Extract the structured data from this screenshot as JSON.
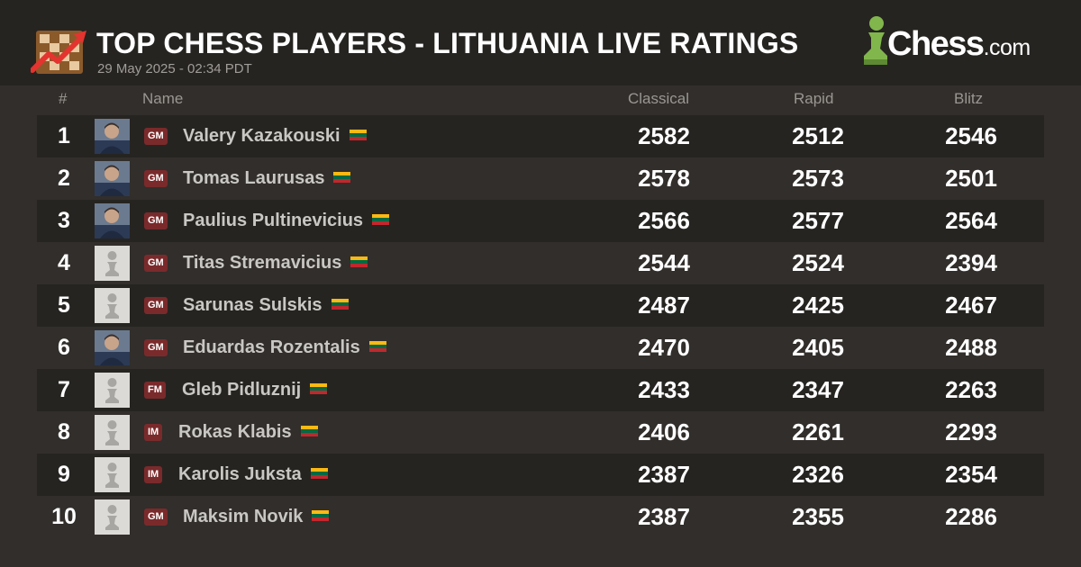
{
  "header": {
    "title": "TOP CHESS PLAYERS - LITHUANIA LIVE RATINGS",
    "timestamp": "29 May 2025 - 02:34 PDT",
    "brand_main": "Chess",
    "brand_suffix": ".com"
  },
  "columns": {
    "rank": "#",
    "name": "Name",
    "classical": "Classical",
    "rapid": "Rapid",
    "blitz": "Blitz"
  },
  "colors": {
    "background": "#312e2b",
    "header_background": "#262421",
    "title_badge": "#7a2a2b",
    "brand_green": "#81b64c",
    "flag_yellow": "#fdb913",
    "flag_green": "#006a44",
    "flag_red": "#c1272d"
  },
  "players": [
    {
      "rank": "1",
      "title": "GM",
      "name": "Valery Kazakouski",
      "avatar": "photo",
      "classical": "2582",
      "rapid": "2512",
      "blitz": "2546"
    },
    {
      "rank": "2",
      "title": "GM",
      "name": "Tomas Laurusas",
      "avatar": "photo",
      "classical": "2578",
      "rapid": "2573",
      "blitz": "2501"
    },
    {
      "rank": "3",
      "title": "GM",
      "name": "Paulius Pultinevicius",
      "avatar": "photo",
      "classical": "2566",
      "rapid": "2577",
      "blitz": "2564"
    },
    {
      "rank": "4",
      "title": "GM",
      "name": "Titas Stremavicius",
      "avatar": "pawn-placeholder",
      "classical": "2544",
      "rapid": "2524",
      "blitz": "2394"
    },
    {
      "rank": "5",
      "title": "GM",
      "name": "Sarunas Sulskis",
      "avatar": "pawn-placeholder",
      "classical": "2487",
      "rapid": "2425",
      "blitz": "2467"
    },
    {
      "rank": "6",
      "title": "GM",
      "name": "Eduardas Rozentalis",
      "avatar": "photo",
      "classical": "2470",
      "rapid": "2405",
      "blitz": "2488"
    },
    {
      "rank": "7",
      "title": "FM",
      "name": "Gleb Pidluznij",
      "avatar": "pawn-placeholder",
      "classical": "2433",
      "rapid": "2347",
      "blitz": "2263"
    },
    {
      "rank": "8",
      "title": "IM",
      "name": "Rokas Klabis",
      "avatar": "pawn-placeholder",
      "classical": "2406",
      "rapid": "2261",
      "blitz": "2293"
    },
    {
      "rank": "9",
      "title": "IM",
      "name": "Karolis Juksta",
      "avatar": "pawn-placeholder",
      "classical": "2387",
      "rapid": "2326",
      "blitz": "2354"
    },
    {
      "rank": "10",
      "title": "GM",
      "name": "Maksim Novik",
      "avatar": "pawn-placeholder",
      "classical": "2387",
      "rapid": "2355",
      "blitz": "2286"
    }
  ]
}
